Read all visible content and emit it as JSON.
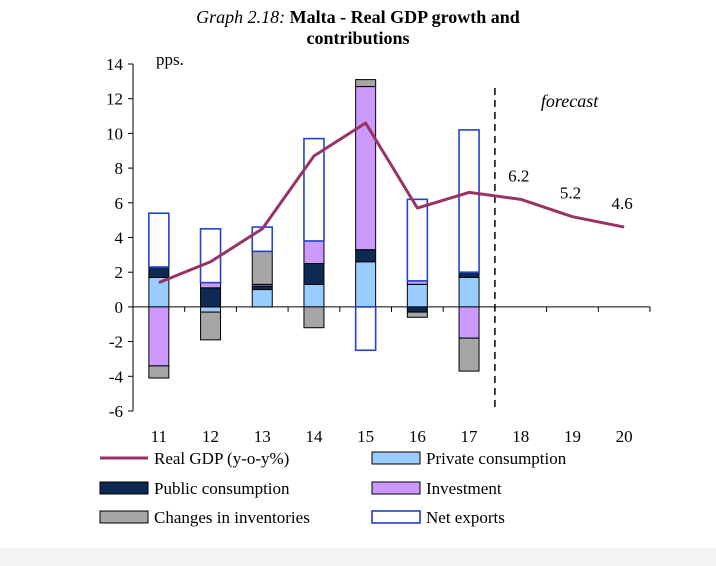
{
  "title": {
    "graph_number": "Graph 2.18:",
    "line1": "Malta - Real GDP growth and",
    "line2": "contributions"
  },
  "colors": {
    "private_consumption": "#99ccff",
    "public_consumption": "#0f2a52",
    "investment": "#cc99ff",
    "inventories": "#a6a6a6",
    "net_exports_stroke": "#2244cc",
    "gdp_line": "#993366",
    "bar_outline": "#000000"
  },
  "chart_data": {
    "type": "bar",
    "title": "Malta - Real GDP growth and contributions",
    "ylabel": "pps.",
    "xlabel": "",
    "ylim": [
      -6,
      14
    ],
    "yticks": [
      -6,
      -4,
      -2,
      0,
      2,
      4,
      6,
      8,
      10,
      12,
      14
    ],
    "categories": [
      "11",
      "12",
      "13",
      "14",
      "15",
      "16",
      "17",
      "18",
      "19",
      "20"
    ],
    "annotation": "forecast",
    "forecast_start_after": "17",
    "series": [
      {
        "name": "Private consumption",
        "kind": "stacked-bar",
        "values": [
          1.7,
          -0.3,
          1.0,
          1.3,
          2.6,
          1.3,
          1.7,
          null,
          null,
          null
        ]
      },
      {
        "name": "Public consumption",
        "kind": "stacked-bar",
        "values": [
          0.6,
          1.1,
          0.2,
          1.2,
          0.7,
          -0.3,
          0.3,
          null,
          null,
          null
        ]
      },
      {
        "name": "Investment",
        "kind": "stacked-bar",
        "values": [
          -3.4,
          0.3,
          0.1,
          1.3,
          9.4,
          0.2,
          -1.8,
          null,
          null,
          null
        ]
      },
      {
        "name": "Changes in inventories",
        "kind": "stacked-bar",
        "values": [
          -0.7,
          -1.6,
          1.9,
          -1.2,
          0.4,
          -0.3,
          -1.9,
          null,
          null,
          null
        ]
      },
      {
        "name": "Net exports",
        "kind": "stacked-bar-outline",
        "values": [
          3.1,
          3.1,
          1.4,
          5.9,
          -2.5,
          4.7,
          8.2,
          null,
          null,
          null
        ]
      },
      {
        "name": "Real GDP (y-o-y%)",
        "kind": "line",
        "values": [
          1.4,
          2.6,
          4.5,
          8.7,
          10.6,
          5.7,
          6.6,
          6.2,
          5.2,
          4.6
        ]
      }
    ],
    "data_labels": [
      {
        "category": "18",
        "text": "6.2"
      },
      {
        "category": "19",
        "text": "5.2"
      },
      {
        "category": "20",
        "text": "4.6"
      }
    ],
    "legend": [
      {
        "label": "Real GDP (y-o-y%)",
        "series": "Real GDP (y-o-y%)"
      },
      {
        "label": "Private consumption",
        "series": "Private consumption"
      },
      {
        "label": "Public consumption",
        "series": "Public consumption"
      },
      {
        "label": "Investment",
        "series": "Investment"
      },
      {
        "label": "Changes in inventories",
        "series": "Changes in inventories"
      },
      {
        "label": "Net exports",
        "series": "Net exports"
      }
    ]
  }
}
